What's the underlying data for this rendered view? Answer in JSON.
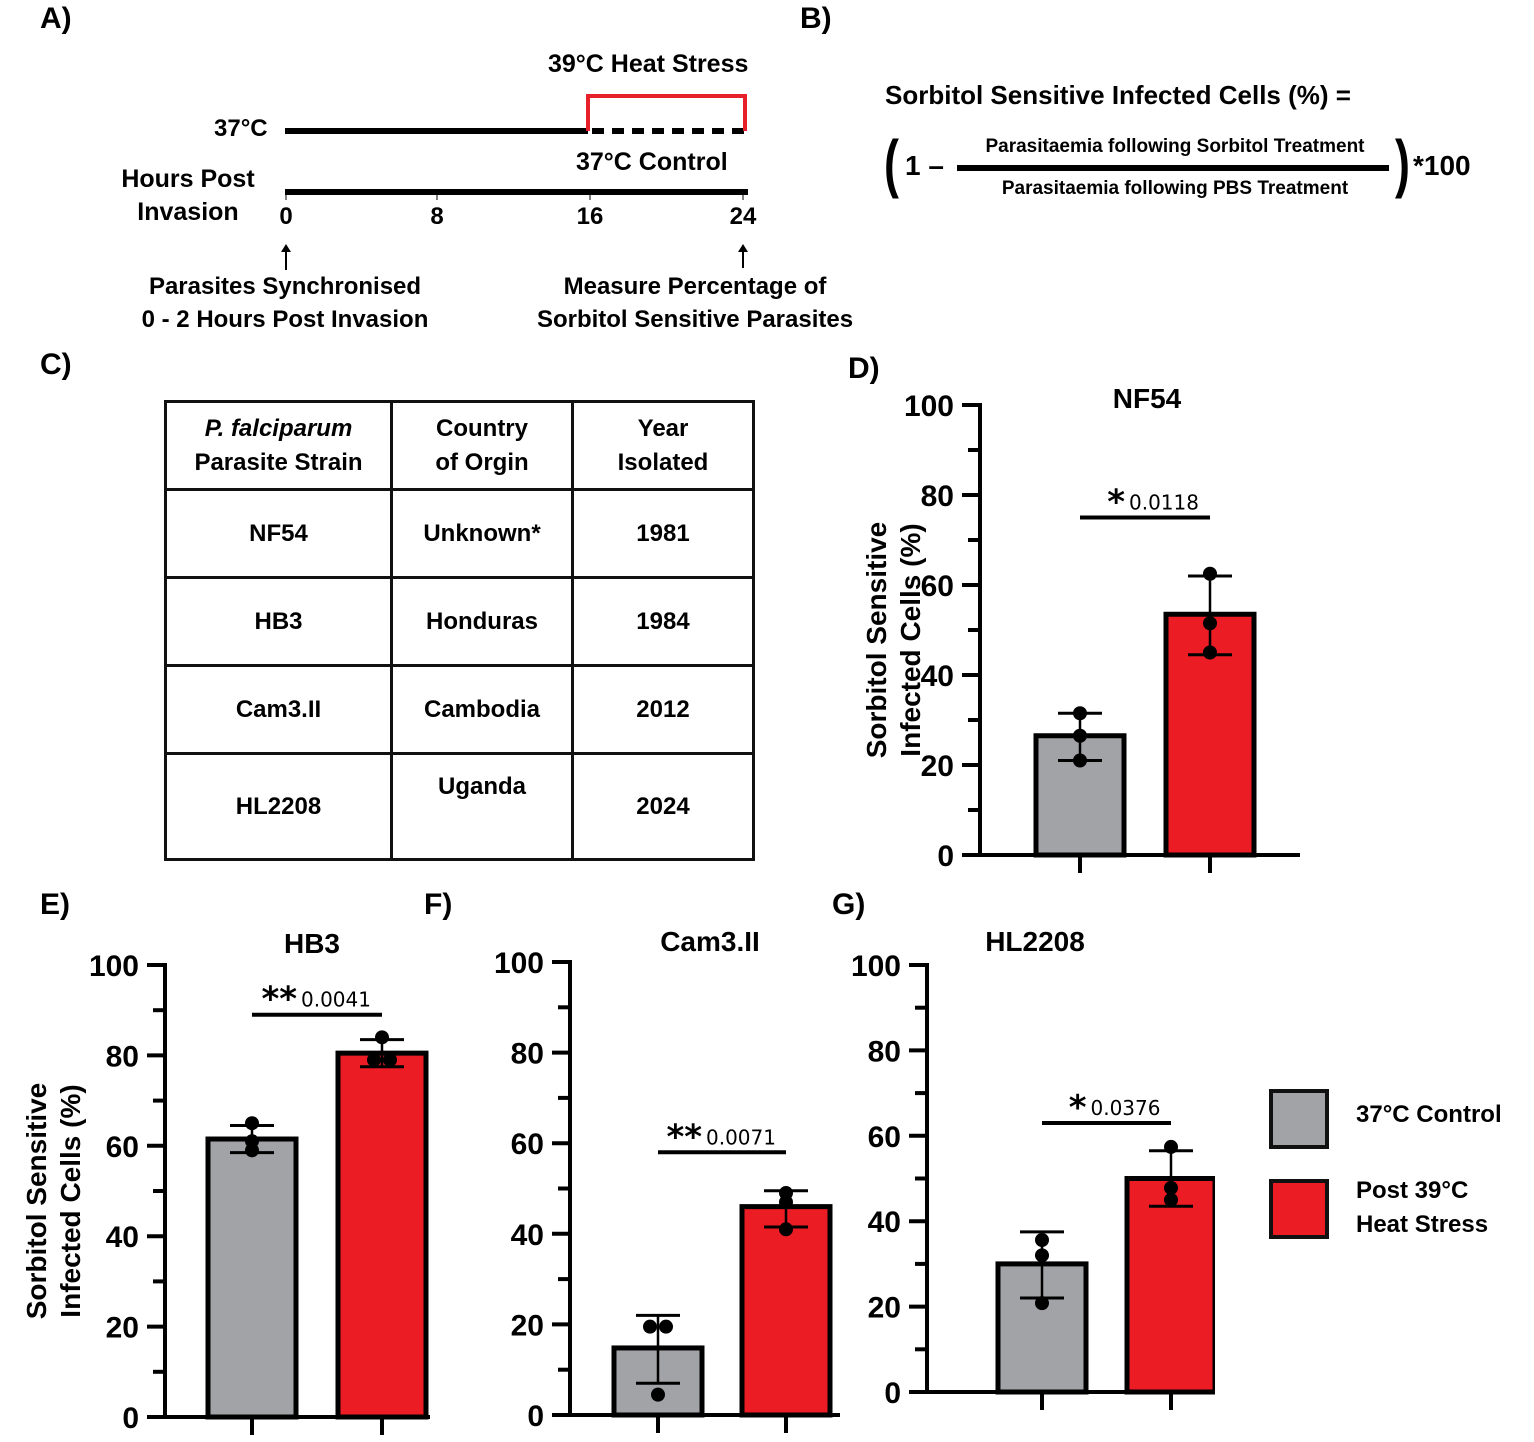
{
  "panel_labels": {
    "a": "A)",
    "b": "B)",
    "c": "C)",
    "d": "D)",
    "e": "E)",
    "f": "F)",
    "g": "G)"
  },
  "timeline": {
    "heat_stress_label": "39°C Heat Stress",
    "baseline_temp_label": "37°C",
    "control_label": "37°C Control",
    "axis_title_line1": "Hours Post",
    "axis_title_line2": "Invasion",
    "ticks": [
      "0",
      "8",
      "16",
      "24"
    ],
    "start_note_line1": "Parasites Synchronised",
    "start_note_line2": "0 - 2 Hours Post Invasion",
    "end_note_line1": "Measure Percentage of",
    "end_note_line2": "Sorbitol Sensitive Parasites",
    "colors": {
      "heat": "#e8202a",
      "baseline": "#000000"
    }
  },
  "formula": {
    "lhs": "Sorbitol Sensitive Infected Cells (%) =",
    "open": "(",
    "one_minus": "1 –",
    "numerator": "Parasitaemia following Sorbitol Treatment",
    "denominator": "Parasitaemia following PBS Treatment",
    "close": ")",
    "times": "*100"
  },
  "table": {
    "headers": [
      {
        "line1": "P. falciparum",
        "line2": "Parasite Strain"
      },
      {
        "line1": "Country",
        "line2": "of Orgin"
      },
      {
        "line1": "Year",
        "line2": "Isolated"
      }
    ],
    "rows": [
      [
        "NF54",
        "Unknown*",
        "1981"
      ],
      [
        "HB3",
        "Honduras",
        "1984"
      ],
      [
        "Cam3.II",
        "Cambodia",
        "2012"
      ],
      [
        "HL2208",
        "Uganda",
        "2024"
      ]
    ]
  },
  "legend": {
    "items": [
      {
        "label_line1": "37°C Control",
        "label_line2": "",
        "color": "#a2a3a7"
      },
      {
        "label_line1": "Post 39°C",
        "label_line2": "Heat Stress",
        "color": "#ec1c24"
      }
    ]
  },
  "chart_data": [
    {
      "type": "bar",
      "panel": "D",
      "title": "NF54",
      "ylabel_line1": "Sorbitol Sensitive",
      "ylabel_line2": "Infected Cells (%)",
      "ylim": [
        0,
        100
      ],
      "yticks": [
        "0",
        "20",
        "40",
        "60",
        "80",
        "100"
      ],
      "categories": [
        "37°C Control",
        "Post 39°C Heat Stress"
      ],
      "values": [
        26.5,
        53.5
      ],
      "error_low": [
        21,
        44.5
      ],
      "error_high": [
        31.5,
        62
      ],
      "points": [
        [
          31.5,
          26.5,
          21
        ],
        [
          62.5,
          51.5,
          45
        ]
      ],
      "significance": {
        "stars": "*",
        "p_value": "0.0118",
        "y": 75
      }
    },
    {
      "type": "bar",
      "panel": "E",
      "title": "HB3",
      "ylabel_line1": "Sorbitol Sensitive",
      "ylabel_line2": "Infected Cells (%)",
      "ylim": [
        0,
        100
      ],
      "yticks": [
        "0",
        "20",
        "40",
        "60",
        "80",
        "100"
      ],
      "categories": [
        "37°C Control",
        "Post 39°C Heat Stress"
      ],
      "values": [
        61.5,
        80.5
      ],
      "error_low": [
        58.5,
        77.5
      ],
      "error_high": [
        64.5,
        83.5
      ],
      "points": [
        [
          65,
          61,
          59
        ],
        [
          84,
          79,
          79
        ]
      ],
      "significance": {
        "stars": "**",
        "p_value": "0.0041",
        "y": 89
      }
    },
    {
      "type": "bar",
      "panel": "F",
      "title": "Cam3.II",
      "ylabel_line1": "",
      "ylabel_line2": "",
      "ylim": [
        0,
        100
      ],
      "yticks": [
        "0",
        "20",
        "40",
        "60",
        "80",
        "100"
      ],
      "categories": [
        "37°C Control",
        "Post 39°C Heat Stress"
      ],
      "values": [
        14.8,
        46
      ],
      "error_low": [
        7,
        41.5
      ],
      "error_high": [
        22,
        49.5
      ],
      "points": [
        [
          19.5,
          19.5,
          4.5
        ],
        [
          49,
          47,
          41
        ]
      ],
      "significance": {
        "stars": "**",
        "p_value": "0.0071",
        "y": 58
      }
    },
    {
      "type": "bar",
      "panel": "G",
      "title": "HL2208",
      "ylabel_line1": "",
      "ylabel_line2": "",
      "ylim": [
        0,
        100
      ],
      "yticks": [
        "0",
        "20",
        "40",
        "60",
        "80",
        "100"
      ],
      "categories": [
        "37°C Control",
        "Post 39°C Heat Stress"
      ],
      "values": [
        30,
        50
      ],
      "error_low": [
        22,
        43.5
      ],
      "error_high": [
        37.5,
        56.5
      ],
      "points": [
        [
          35.6,
          32,
          20.8
        ],
        [
          57.4,
          47.8,
          45
        ]
      ],
      "significance": {
        "stars": "*",
        "p_value": "0.0376",
        "y": 63
      }
    }
  ]
}
